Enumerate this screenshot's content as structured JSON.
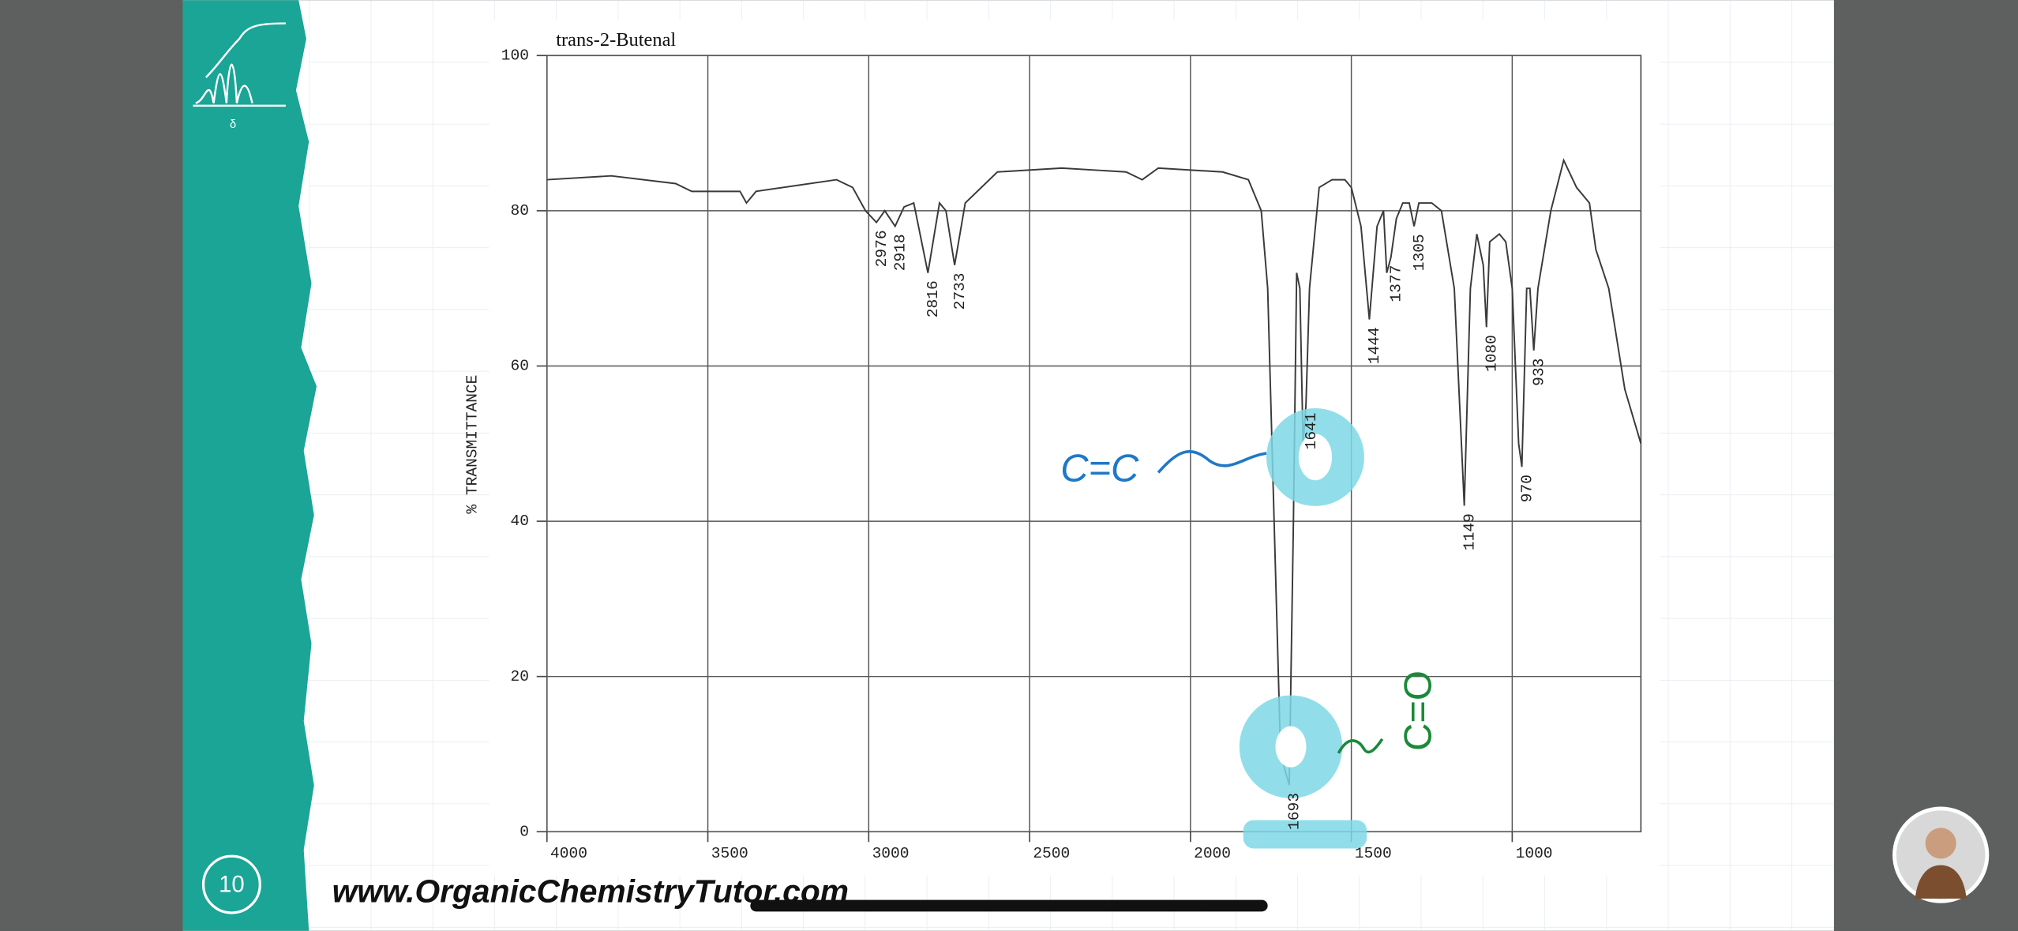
{
  "chart_data": {
    "type": "line",
    "title": "trans-2-Butenal",
    "y_label": "% TRANSMITTANCE",
    "xlim": [
      4000,
      600
    ],
    "ylim": [
      0,
      100
    ],
    "xticks": [
      4000,
      3500,
      3000,
      2500,
      2000,
      1500,
      1000
    ],
    "yticks": [
      0,
      20,
      40,
      60,
      80,
      100
    ],
    "grid": true,
    "color": "#3a3a3a",
    "x": [
      4000,
      3800,
      3600,
      3550,
      3400,
      3380,
      3350,
      3100,
      3050,
      3010,
      2976,
      2950,
      2918,
      2890,
      2860,
      2816,
      2780,
      2760,
      2733,
      2700,
      2600,
      2400,
      2200,
      2150,
      2100,
      1900,
      1820,
      1780,
      1760,
      1740,
      1720,
      1693,
      1680,
      1670,
      1660,
      1650,
      1641,
      1630,
      1600,
      1560,
      1520,
      1500,
      1470,
      1444,
      1420,
      1400,
      1390,
      1377,
      1360,
      1340,
      1320,
      1305,
      1290,
      1250,
      1220,
      1180,
      1149,
      1130,
      1110,
      1090,
      1080,
      1070,
      1040,
      1020,
      1000,
      980,
      970,
      955,
      945,
      933,
      920,
      880,
      840,
      800,
      760,
      740,
      700,
      650,
      600
    ],
    "values": [
      84,
      84.5,
      83.5,
      82.5,
      82.5,
      81,
      82.5,
      84,
      83,
      80,
      78.5,
      80,
      78,
      80.5,
      81,
      72,
      81,
      80,
      73,
      81,
      85,
      85.5,
      85,
      84,
      85.5,
      85,
      84,
      80,
      70,
      40,
      10,
      6,
      40,
      72,
      70,
      50,
      55,
      70,
      83,
      84,
      84,
      83,
      78,
      66,
      78,
      80,
      72,
      74,
      79,
      81,
      81,
      78,
      81,
      81,
      80,
      70,
      42,
      70,
      77,
      73,
      65,
      76,
      77,
      76,
      70,
      50,
      47,
      70,
      70,
      62,
      70,
      80,
      86.5,
      83,
      81,
      75,
      70,
      57,
      50
    ],
    "peak_labels": [
      2976,
      2918,
      2816,
      2733,
      1693,
      1641,
      1444,
      1377,
      1305,
      1149,
      1080,
      970,
      933
    ],
    "annotations": [
      "C=C",
      "C=O"
    ]
  },
  "footer": {
    "url": "www.OrganicChemistryTutor.com",
    "slide_number": "10"
  }
}
